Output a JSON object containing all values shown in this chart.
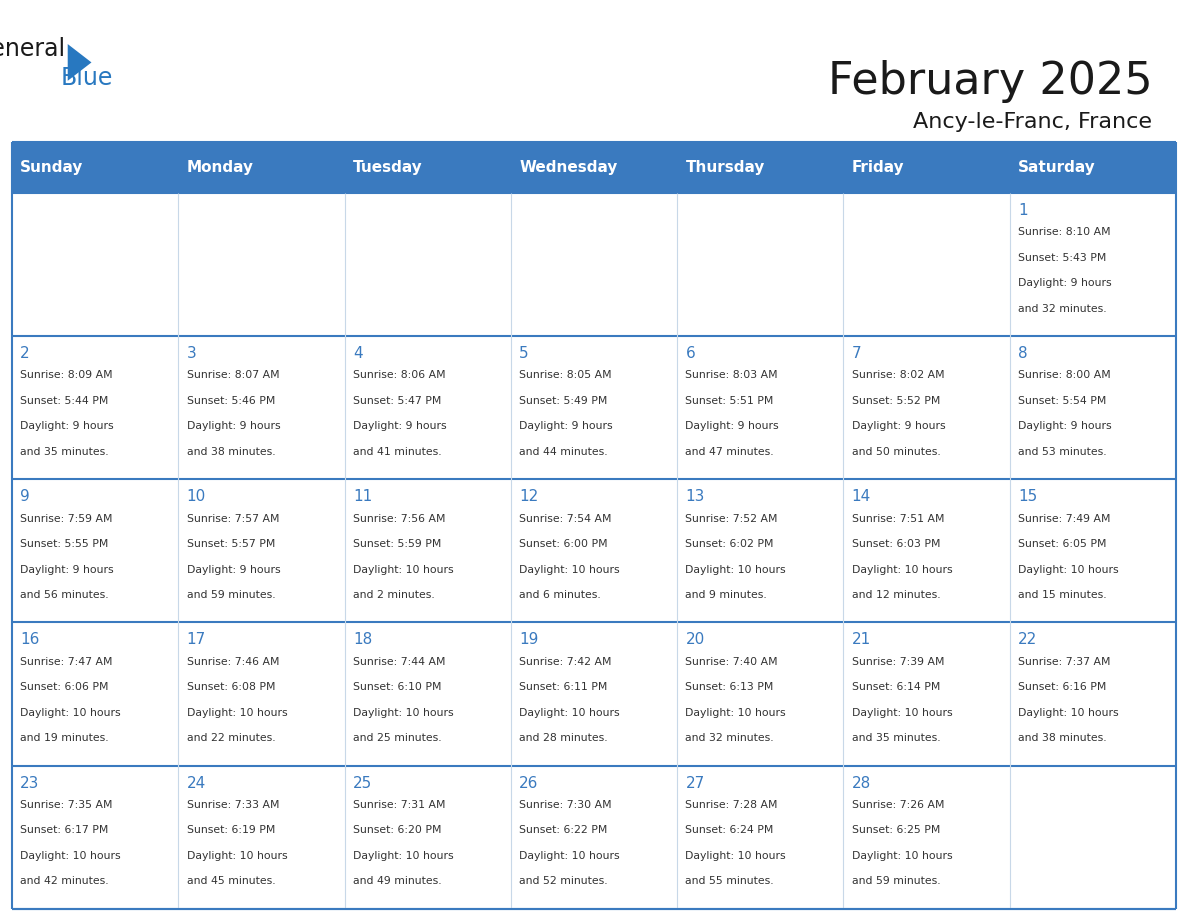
{
  "title": "February 2025",
  "subtitle": "Ancy-le-Franc, France",
  "header_bg": "#3a7abf",
  "header_text": "#ffffff",
  "border_color": "#3a7abf",
  "cell_border_color": "#c8d8e8",
  "day_names": [
    "Sunday",
    "Monday",
    "Tuesday",
    "Wednesday",
    "Thursday",
    "Friday",
    "Saturday"
  ],
  "days": [
    {
      "day": 1,
      "col": 6,
      "row": 0,
      "sunrise": "8:10 AM",
      "sunset": "5:43 PM",
      "daylight": "9 hours and 32 minutes."
    },
    {
      "day": 2,
      "col": 0,
      "row": 1,
      "sunrise": "8:09 AM",
      "sunset": "5:44 PM",
      "daylight": "9 hours and 35 minutes."
    },
    {
      "day": 3,
      "col": 1,
      "row": 1,
      "sunrise": "8:07 AM",
      "sunset": "5:46 PM",
      "daylight": "9 hours and 38 minutes."
    },
    {
      "day": 4,
      "col": 2,
      "row": 1,
      "sunrise": "8:06 AM",
      "sunset": "5:47 PM",
      "daylight": "9 hours and 41 minutes."
    },
    {
      "day": 5,
      "col": 3,
      "row": 1,
      "sunrise": "8:05 AM",
      "sunset": "5:49 PM",
      "daylight": "9 hours and 44 minutes."
    },
    {
      "day": 6,
      "col": 4,
      "row": 1,
      "sunrise": "8:03 AM",
      "sunset": "5:51 PM",
      "daylight": "9 hours and 47 minutes."
    },
    {
      "day": 7,
      "col": 5,
      "row": 1,
      "sunrise": "8:02 AM",
      "sunset": "5:52 PM",
      "daylight": "9 hours and 50 minutes."
    },
    {
      "day": 8,
      "col": 6,
      "row": 1,
      "sunrise": "8:00 AM",
      "sunset": "5:54 PM",
      "daylight": "9 hours and 53 minutes."
    },
    {
      "day": 9,
      "col": 0,
      "row": 2,
      "sunrise": "7:59 AM",
      "sunset": "5:55 PM",
      "daylight": "9 hours and 56 minutes."
    },
    {
      "day": 10,
      "col": 1,
      "row": 2,
      "sunrise": "7:57 AM",
      "sunset": "5:57 PM",
      "daylight": "9 hours and 59 minutes."
    },
    {
      "day": 11,
      "col": 2,
      "row": 2,
      "sunrise": "7:56 AM",
      "sunset": "5:59 PM",
      "daylight": "10 hours and 2 minutes."
    },
    {
      "day": 12,
      "col": 3,
      "row": 2,
      "sunrise": "7:54 AM",
      "sunset": "6:00 PM",
      "daylight": "10 hours and 6 minutes."
    },
    {
      "day": 13,
      "col": 4,
      "row": 2,
      "sunrise": "7:52 AM",
      "sunset": "6:02 PM",
      "daylight": "10 hours and 9 minutes."
    },
    {
      "day": 14,
      "col": 5,
      "row": 2,
      "sunrise": "7:51 AM",
      "sunset": "6:03 PM",
      "daylight": "10 hours and 12 minutes."
    },
    {
      "day": 15,
      "col": 6,
      "row": 2,
      "sunrise": "7:49 AM",
      "sunset": "6:05 PM",
      "daylight": "10 hours and 15 minutes."
    },
    {
      "day": 16,
      "col": 0,
      "row": 3,
      "sunrise": "7:47 AM",
      "sunset": "6:06 PM",
      "daylight": "10 hours and 19 minutes."
    },
    {
      "day": 17,
      "col": 1,
      "row": 3,
      "sunrise": "7:46 AM",
      "sunset": "6:08 PM",
      "daylight": "10 hours and 22 minutes."
    },
    {
      "day": 18,
      "col": 2,
      "row": 3,
      "sunrise": "7:44 AM",
      "sunset": "6:10 PM",
      "daylight": "10 hours and 25 minutes."
    },
    {
      "day": 19,
      "col": 3,
      "row": 3,
      "sunrise": "7:42 AM",
      "sunset": "6:11 PM",
      "daylight": "10 hours and 28 minutes."
    },
    {
      "day": 20,
      "col": 4,
      "row": 3,
      "sunrise": "7:40 AM",
      "sunset": "6:13 PM",
      "daylight": "10 hours and 32 minutes."
    },
    {
      "day": 21,
      "col": 5,
      "row": 3,
      "sunrise": "7:39 AM",
      "sunset": "6:14 PM",
      "daylight": "10 hours and 35 minutes."
    },
    {
      "day": 22,
      "col": 6,
      "row": 3,
      "sunrise": "7:37 AM",
      "sunset": "6:16 PM",
      "daylight": "10 hours and 38 minutes."
    },
    {
      "day": 23,
      "col": 0,
      "row": 4,
      "sunrise": "7:35 AM",
      "sunset": "6:17 PM",
      "daylight": "10 hours and 42 minutes."
    },
    {
      "day": 24,
      "col": 1,
      "row": 4,
      "sunrise": "7:33 AM",
      "sunset": "6:19 PM",
      "daylight": "10 hours and 45 minutes."
    },
    {
      "day": 25,
      "col": 2,
      "row": 4,
      "sunrise": "7:31 AM",
      "sunset": "6:20 PM",
      "daylight": "10 hours and 49 minutes."
    },
    {
      "day": 26,
      "col": 3,
      "row": 4,
      "sunrise": "7:30 AM",
      "sunset": "6:22 PM",
      "daylight": "10 hours and 52 minutes."
    },
    {
      "day": 27,
      "col": 4,
      "row": 4,
      "sunrise": "7:28 AM",
      "sunset": "6:24 PM",
      "daylight": "10 hours and 55 minutes."
    },
    {
      "day": 28,
      "col": 5,
      "row": 4,
      "sunrise": "7:26 AM",
      "sunset": "6:25 PM",
      "daylight": "10 hours and 59 minutes."
    }
  ],
  "logo_general_color": "#1a1a1a",
  "logo_blue_color": "#2878c0",
  "logo_triangle_color": "#2878c0"
}
